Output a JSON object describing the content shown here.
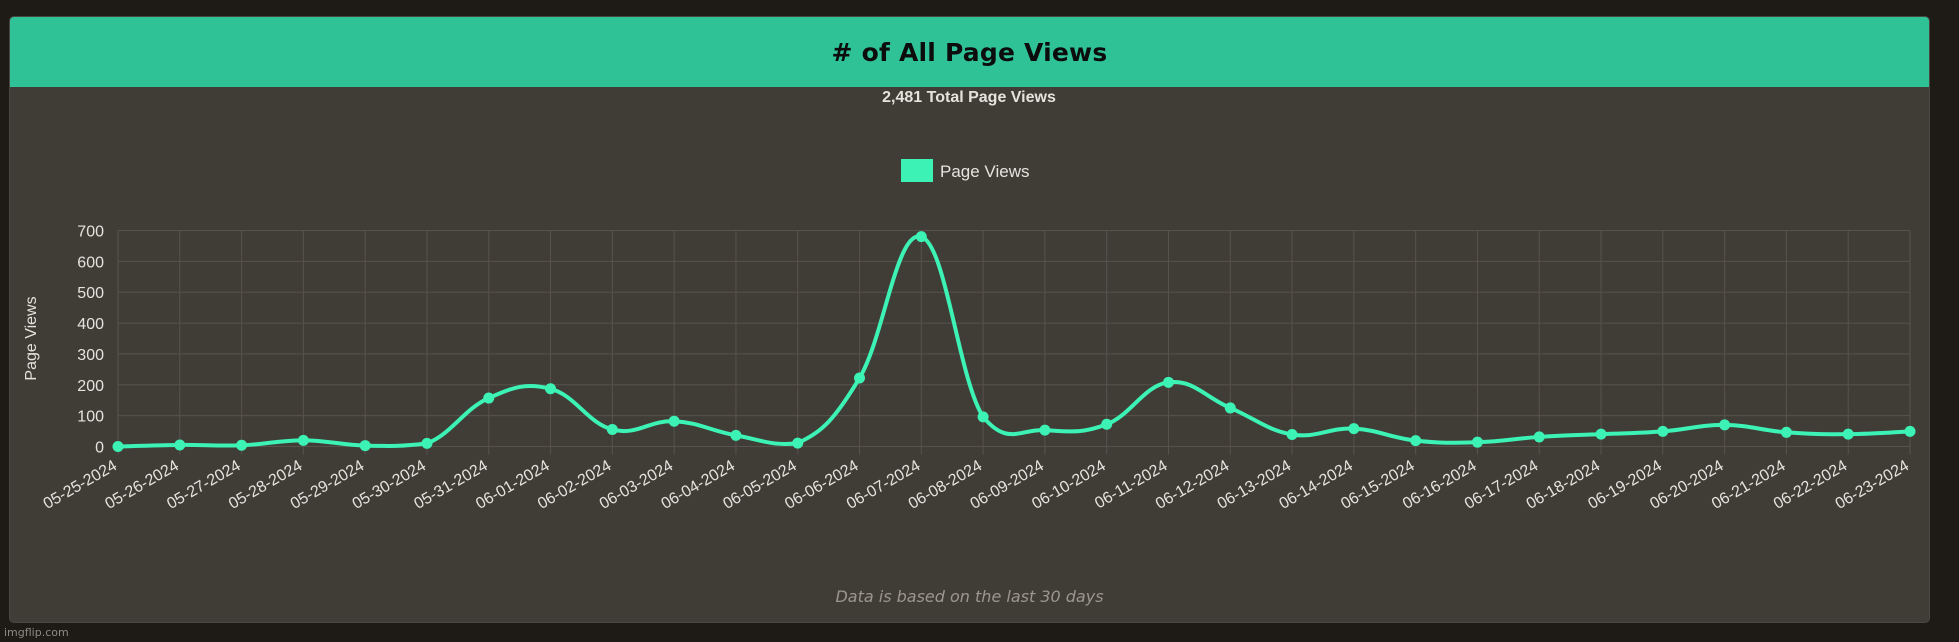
{
  "card": {
    "title": "# of All Page Views",
    "header_color": "#2fc297",
    "footer_note": "Data is based on the last 30 days"
  },
  "watermark": "imgflip.com",
  "chart_data": {
    "type": "line",
    "title": "2,481 Total Page Views",
    "xlabel": "",
    "ylabel": "Page Views",
    "ylim": [
      0,
      700
    ],
    "yticks": [
      0,
      100,
      200,
      300,
      400,
      500,
      600,
      700
    ],
    "grid": true,
    "legend_position": "top",
    "line_color": "#3cf2b4",
    "categories": [
      "05-25-2024",
      "05-26-2024",
      "05-27-2024",
      "05-28-2024",
      "05-29-2024",
      "05-30-2024",
      "05-31-2024",
      "06-01-2024",
      "06-02-2024",
      "06-03-2024",
      "06-04-2024",
      "06-05-2024",
      "06-06-2024",
      "06-07-2024",
      "06-08-2024",
      "06-09-2024",
      "06-10-2024",
      "06-11-2024",
      "06-12-2024",
      "06-13-2024",
      "06-14-2024",
      "06-15-2024",
      "06-16-2024",
      "06-17-2024",
      "06-18-2024",
      "06-19-2024",
      "06-20-2024",
      "06-21-2024",
      "06-22-2024",
      "06-23-2024"
    ],
    "series": [
      {
        "name": "Page Views",
        "values": [
          0,
          5,
          4,
          20,
          3,
          10,
          157,
          187,
          55,
          82,
          36,
          11,
          222,
          680,
          96,
          53,
          72,
          208,
          125,
          39,
          58,
          19,
          14,
          31,
          40,
          49,
          70,
          46,
          40,
          49
        ]
      }
    ]
  }
}
